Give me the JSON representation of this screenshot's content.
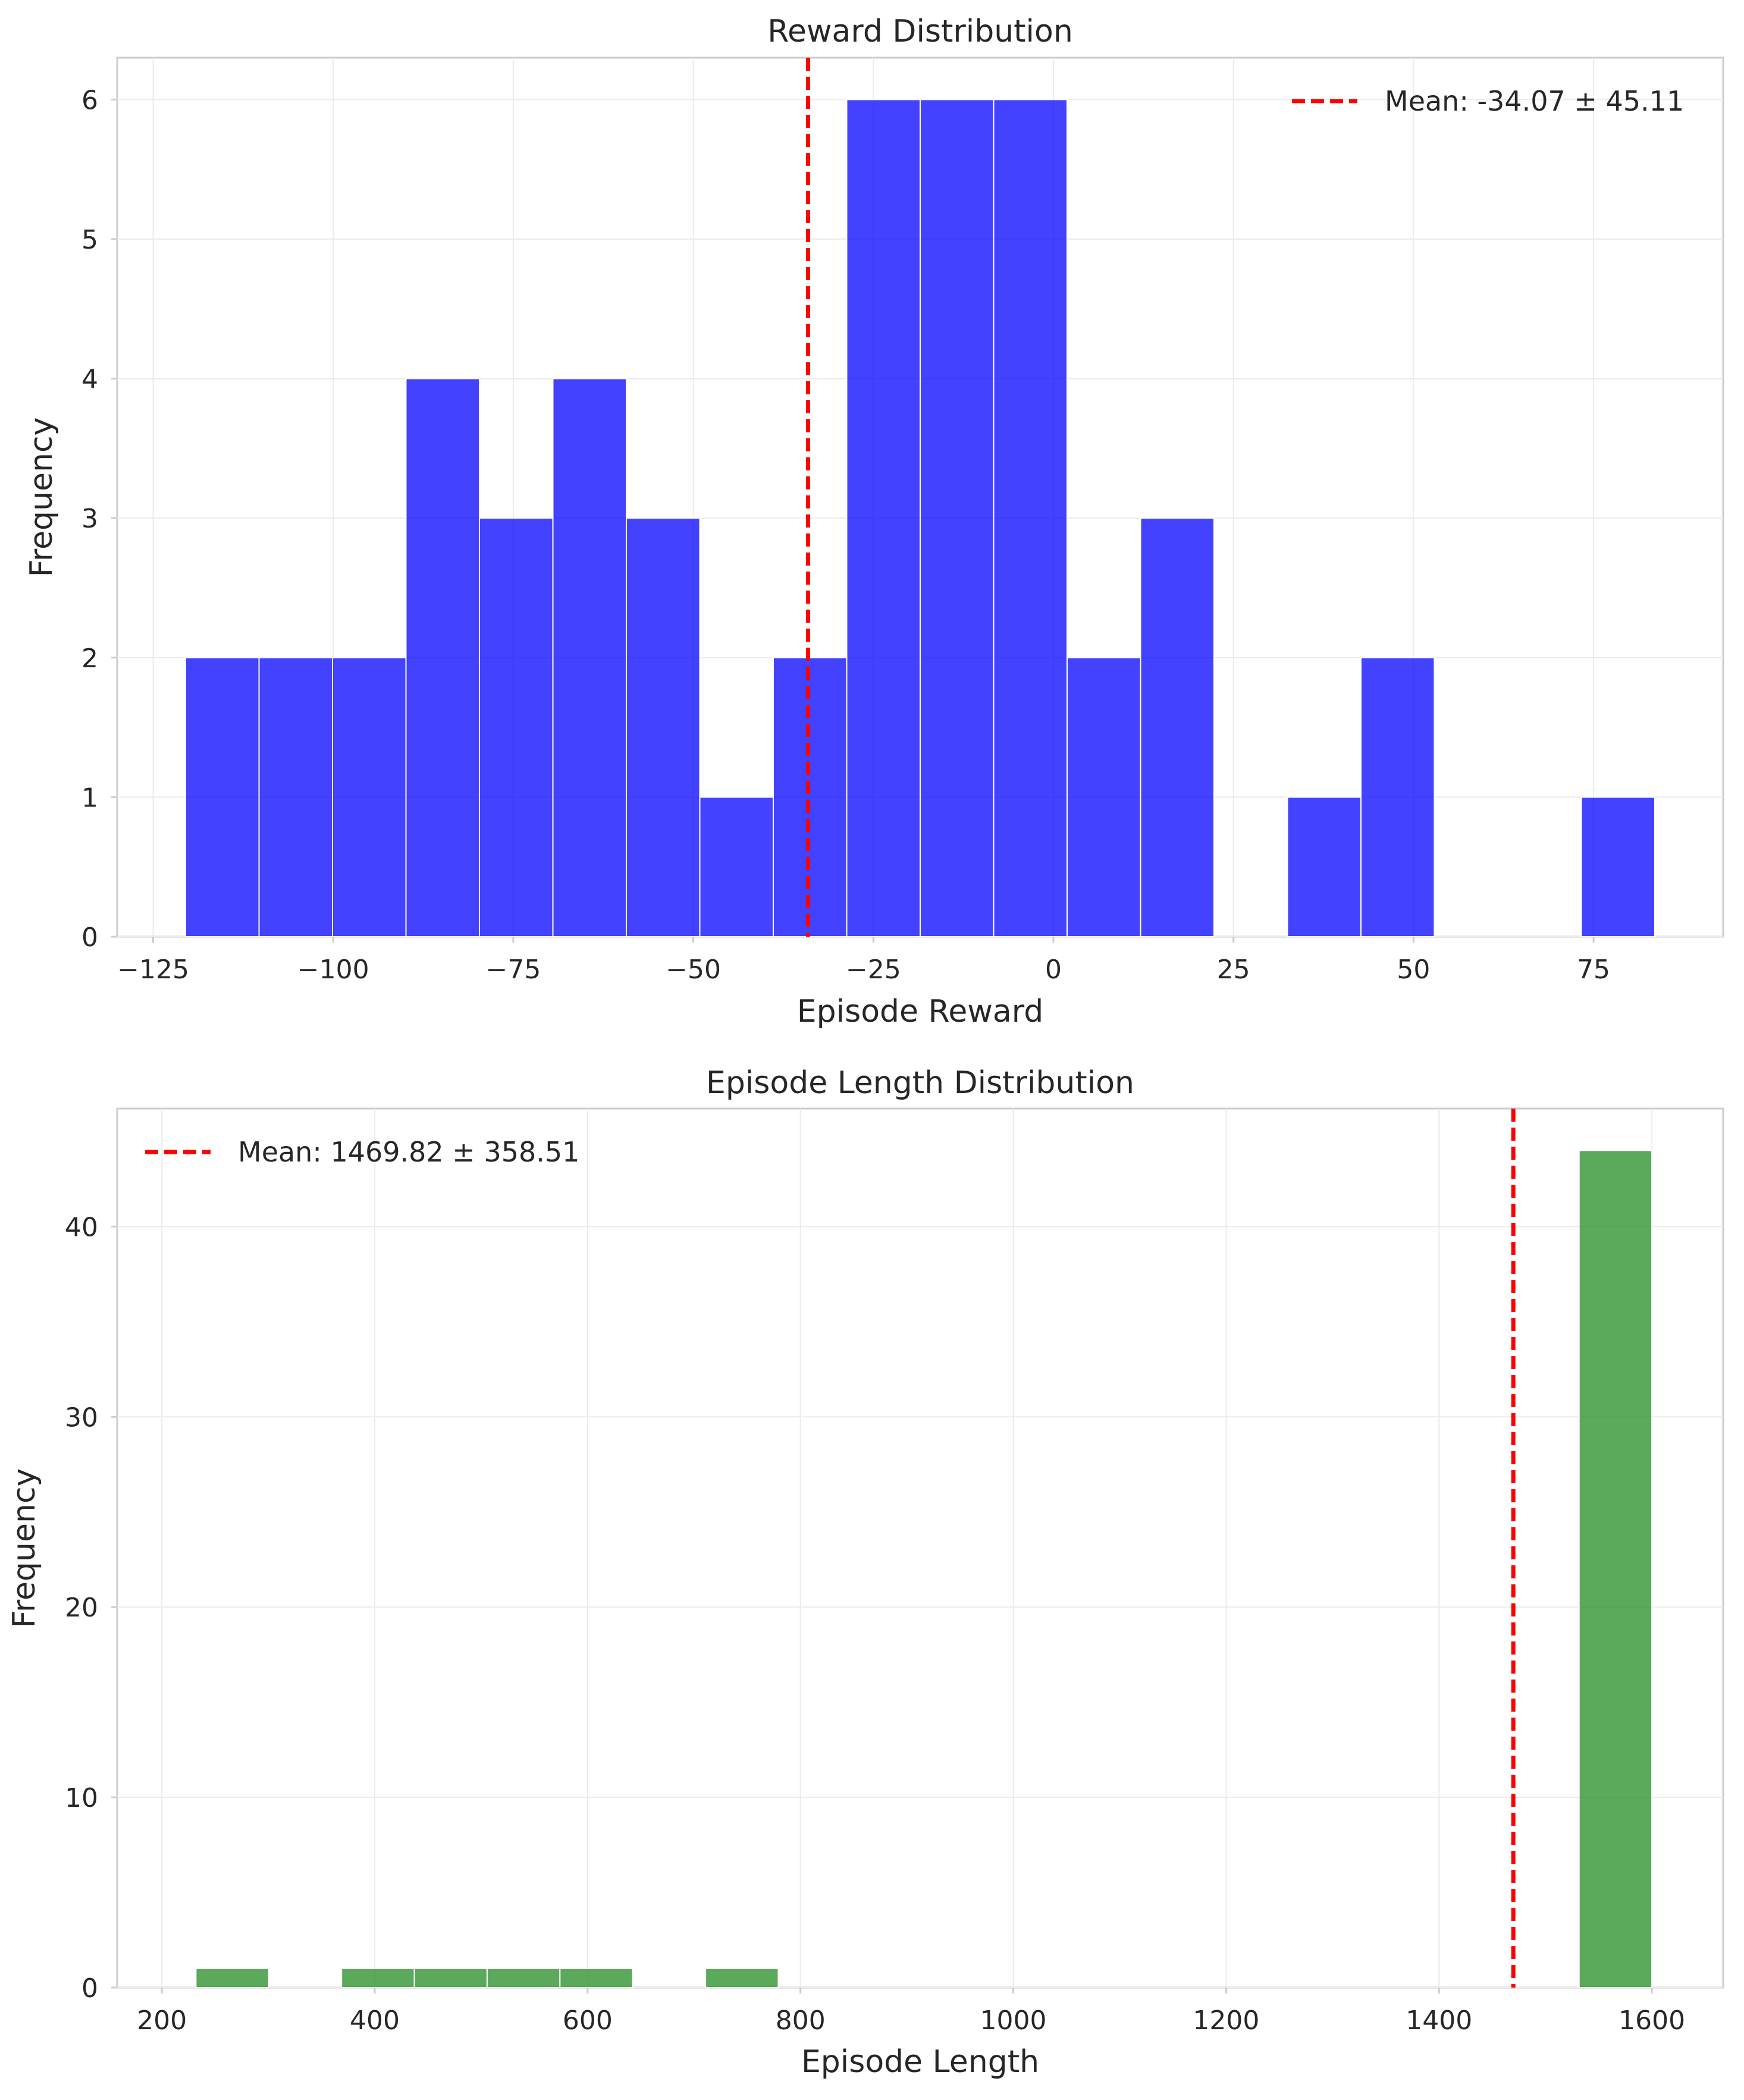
{
  "chart_data": [
    {
      "type": "bar",
      "title": "Reward Distribution",
      "xlabel": "Episode Reward",
      "ylabel": "Frequency",
      "xlim": [
        -130,
        93
      ],
      "ylim": [
        0,
        6.3
      ],
      "xticks": [
        -125,
        -100,
        -75,
        -50,
        -25,
        0,
        25,
        50,
        75
      ],
      "xtick_labels": [
        "−125",
        "−100",
        "−75",
        "−50",
        "−25",
        "0",
        "25",
        "50",
        "75"
      ],
      "yticks": [
        0,
        1,
        2,
        3,
        4,
        5,
        6
      ],
      "ytick_labels": [
        "0",
        "1",
        "2",
        "3",
        "4",
        "5",
        "6"
      ],
      "bin_edges": [
        -120.5,
        -110.3,
        -100.1,
        -89.9,
        -79.7,
        -69.5,
        -59.3,
        -49.1,
        -38.9,
        -28.7,
        -18.5,
        -8.3,
        1.9,
        12.1,
        22.3,
        32.5,
        42.7,
        52.9,
        63.1,
        73.3,
        83.5
      ],
      "counts": [
        2,
        2,
        2,
        4,
        3,
        4,
        3,
        1,
        2,
        6,
        6,
        6,
        2,
        3,
        0,
        1,
        2,
        0,
        0,
        1
      ],
      "color": "#0000ff",
      "grid": true,
      "mean_line": {
        "x": -34.07,
        "color": "#ff0000",
        "label": "Mean: -34.07 ± 45.11"
      },
      "legend_position": "top-right"
    },
    {
      "type": "bar",
      "title": "Episode Length Distribution",
      "xlabel": "Episode Length",
      "ylabel": "Frequency",
      "xlim": [
        158,
        1667
      ],
      "ylim": [
        0,
        46.2
      ],
      "xticks": [
        200,
        400,
        600,
        800,
        1000,
        1200,
        1400,
        1600
      ],
      "xtick_labels": [
        "200",
        "400",
        "600",
        "800",
        "1000",
        "1200",
        "1400",
        "1600"
      ],
      "yticks": [
        0,
        10,
        20,
        30,
        40
      ],
      "ytick_labels": [
        "0",
        "10",
        "20",
        "30",
        "40"
      ],
      "bin_edges": [
        232,
        300.4,
        368.8,
        437.2,
        505.6,
        574,
        642.4,
        710.8,
        779.2,
        847.6,
        916,
        984.4,
        1052.8,
        1121.2,
        1189.6,
        1258,
        1326.4,
        1394.8,
        1463.2,
        1531.6,
        1600
      ],
      "counts": [
        1,
        0,
        1,
        1,
        1,
        1,
        0,
        1,
        0,
        0,
        0,
        0,
        0,
        0,
        0,
        0,
        0,
        0,
        0,
        44
      ],
      "color": "#228b22",
      "grid": true,
      "mean_line": {
        "x": 1469.82,
        "color": "#ff0000",
        "label": "Mean: 1469.82 ± 358.51"
      },
      "legend_position": "top-left"
    }
  ]
}
